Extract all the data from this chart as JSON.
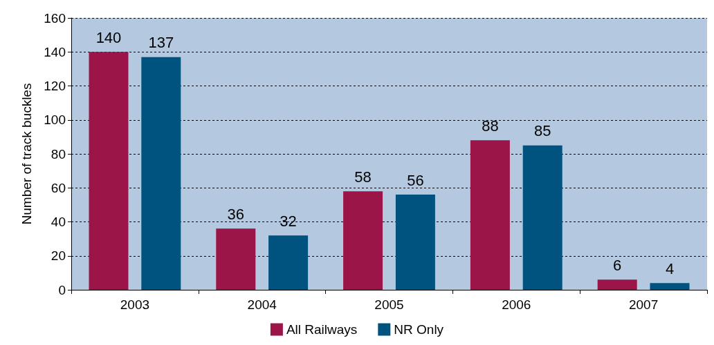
{
  "chart_data": {
    "type": "bar",
    "ylabel": "Number of track buckles",
    "categories": [
      "2003",
      "2004",
      "2005",
      "2006",
      "2007"
    ],
    "series": [
      {
        "name": "All Railways",
        "color": "#9b1548",
        "values": [
          140,
          36,
          58,
          88,
          6
        ]
      },
      {
        "name": "NR Only",
        "color": "#00527f",
        "values": [
          137,
          32,
          56,
          85,
          4
        ]
      }
    ],
    "ylim": [
      0,
      160
    ],
    "yticks": [
      0,
      20,
      40,
      60,
      80,
      100,
      120,
      140,
      160
    ],
    "grid": "y",
    "legend": "bottom",
    "data_labels": true
  }
}
